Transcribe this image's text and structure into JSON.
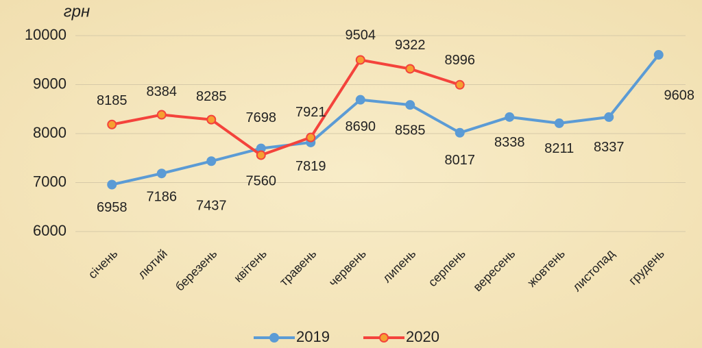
{
  "chart_data": {
    "type": "line",
    "y_label": "грн",
    "categories": [
      "січень",
      "лютий",
      "березень",
      "квітень",
      "травень",
      "червень",
      "липень",
      "серпень",
      "вересень",
      "жовтень",
      "листопад",
      "грудень"
    ],
    "series": [
      {
        "name": "2019",
        "color": "#5b9bd5",
        "marker_color": "#5b9bd5",
        "values": [
          6958,
          7186,
          7437,
          7698,
          7819,
          8690,
          8585,
          8017,
          8338,
          8211,
          8337,
          9608
        ]
      },
      {
        "name": "2020",
        "color": "#f4433c",
        "marker_color": "#f5a030",
        "values": [
          8185,
          8384,
          8285,
          7560,
          7921,
          9504,
          9322,
          8996,
          null,
          null,
          null,
          null
        ]
      }
    ],
    "ylim": [
      6000,
      10000
    ],
    "yticks": [
      6000,
      7000,
      8000,
      9000,
      10000
    ],
    "grid": true,
    "legend": "bottom"
  }
}
